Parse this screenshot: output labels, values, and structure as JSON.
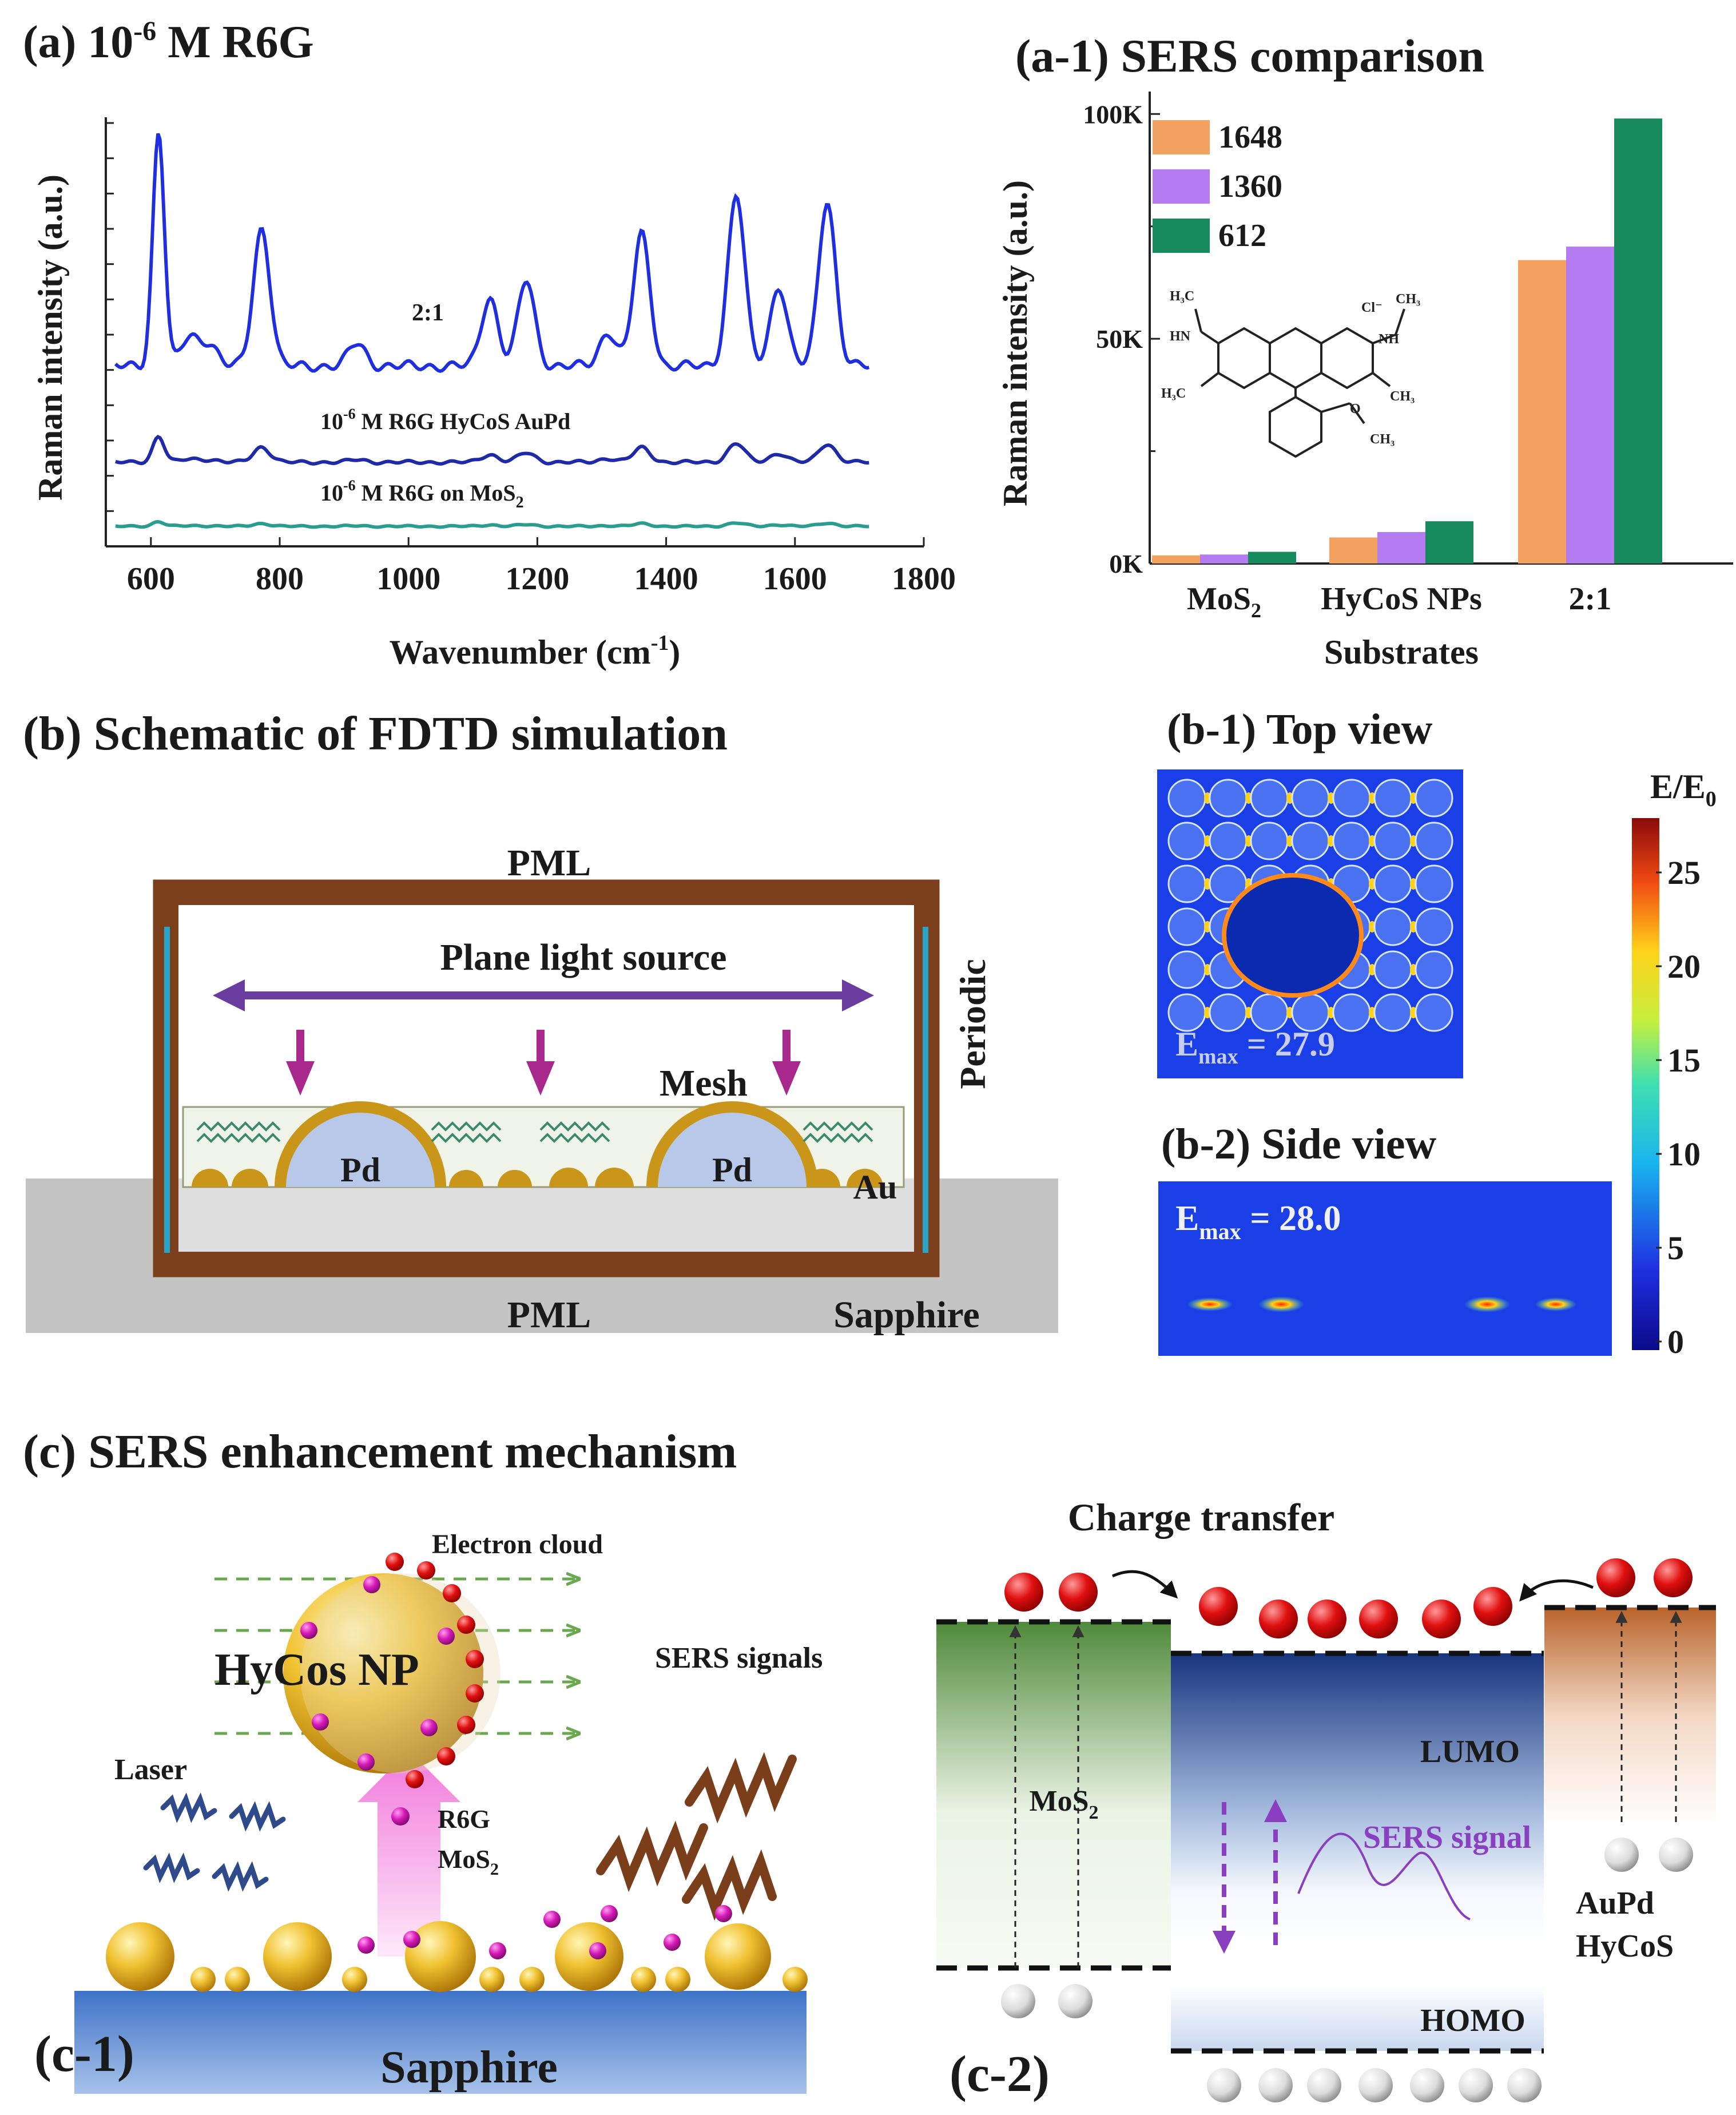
{
  "panel_a": {
    "label": "(a)",
    "title_prefix": "10",
    "title_exp": "-6",
    "title_suffix": "M R6G",
    "spectra": [
      {
        "label": "2:1",
        "color": "#1f2fe0"
      },
      {
        "label_a": "10",
        "label_exp": "-6",
        "label_b": "M R6G HyCoS AuPd",
        "color": "#1e2aa8"
      },
      {
        "label_a": "10",
        "label_exp": "-6",
        "label_b": "M R6G on MoS",
        "label_sub": "2",
        "color": "#2a9d8f"
      }
    ],
    "peaks_cm1": [
      612,
      660,
      690,
      772,
      920,
      1126,
      1183,
      1310,
      1362,
      1509,
      1575,
      1650
    ],
    "ylabel": "Raman intensity (a.u.)",
    "xlabel_a": "Wavenumber (cm",
    "xlabel_exp": "-1",
    "xlabel_b": ")",
    "xticks": [
      "600",
      "800",
      "1000",
      "1200",
      "1400",
      "1600",
      "1800"
    ],
    "xrange": [
      530,
      1800
    ]
  },
  "chart_data": {
    "type": "bar",
    "title": "(a-1) SERS comparison",
    "categories": [
      "MoS2",
      "HyCoS NPs",
      "2:1"
    ],
    "category_labels": {
      "mos": "MoS",
      "mos_sub": "2",
      "hycos": "HyCoS NPs",
      "ratio": "2:1"
    },
    "series": [
      {
        "name": "1648",
        "color": "#f4a261",
        "values": [
          1800,
          5800,
          67500
        ]
      },
      {
        "name": "1360",
        "color": "#b57cf2",
        "values": [
          2000,
          7000,
          70500
        ]
      },
      {
        "name": "612",
        "color": "#168a5c",
        "values": [
          2600,
          9400,
          99000
        ]
      }
    ],
    "ylim": [
      0,
      105000
    ],
    "yticks": [
      0,
      50000,
      100000
    ],
    "ytick_labels": [
      "0K",
      "50K",
      "100K"
    ],
    "xlabel": "Substrates",
    "ylabel": "Raman intensity (a.u.)"
  },
  "panel_b": {
    "title": "(b) Schematic of FDTD simulation",
    "pml_top": "PML",
    "pml_bottom": "PML",
    "plane_source": "Plane light source",
    "mesh": "Mesh",
    "periodic": "Periodic",
    "pd": "Pd",
    "au": "Au",
    "sapphire": "Sapphire",
    "colors": {
      "frame": "#7b3f1c",
      "substrate": "#c4c4c4",
      "arrow": "#6a3ca0",
      "pink_arrow": "#a8288c",
      "gold": "#c9961a",
      "pd_fill": "#b7c8e8",
      "mesh_box": "#f0f4e8",
      "periodic_line": "#2aa3c8"
    }
  },
  "panel_b1": {
    "title": "(b-1) Top view",
    "emax_a": "E",
    "emax_sub": "max",
    "emax_b": " = 27.9",
    "colorbar_a": "E/E",
    "colorbar_sub": "0",
    "colorbar_ticks": [
      "25",
      "20",
      "15",
      "10",
      "5",
      "0"
    ]
  },
  "panel_b2": {
    "title": "(b-2) Side view",
    "emax_a": "E",
    "emax_sub": "max",
    "emax_b": " = 28.0"
  },
  "panel_c": {
    "title": "(c) SERS enhancement mechanism",
    "electron_cloud": "Electron cloud",
    "hycos_np": "HyCos NP",
    "sers_signals": "SERS signals",
    "laser": "Laser",
    "r6g": "R6G",
    "mos_a": "MoS",
    "mos_sub": "2",
    "sapphire": "Sapphire",
    "c1_label": "(c-1)"
  },
  "panel_c2": {
    "charge_transfer": "Charge transfer",
    "lumo": "LUMO",
    "homo": "HOMO",
    "mos_a": "MoS",
    "mos_sub": "2",
    "sers_signal": "SERS signal",
    "aupd": "AuPd",
    "hycos": "HyCoS",
    "c2_label": "(c-2)",
    "colors": {
      "electron": "#e01010",
      "hole": "#d8d8d8",
      "sers": "#8a3fc0",
      "mos_block": "#6da35a",
      "mid_block": "#1b3f8f",
      "aupd_block": "#d2782f"
    }
  }
}
